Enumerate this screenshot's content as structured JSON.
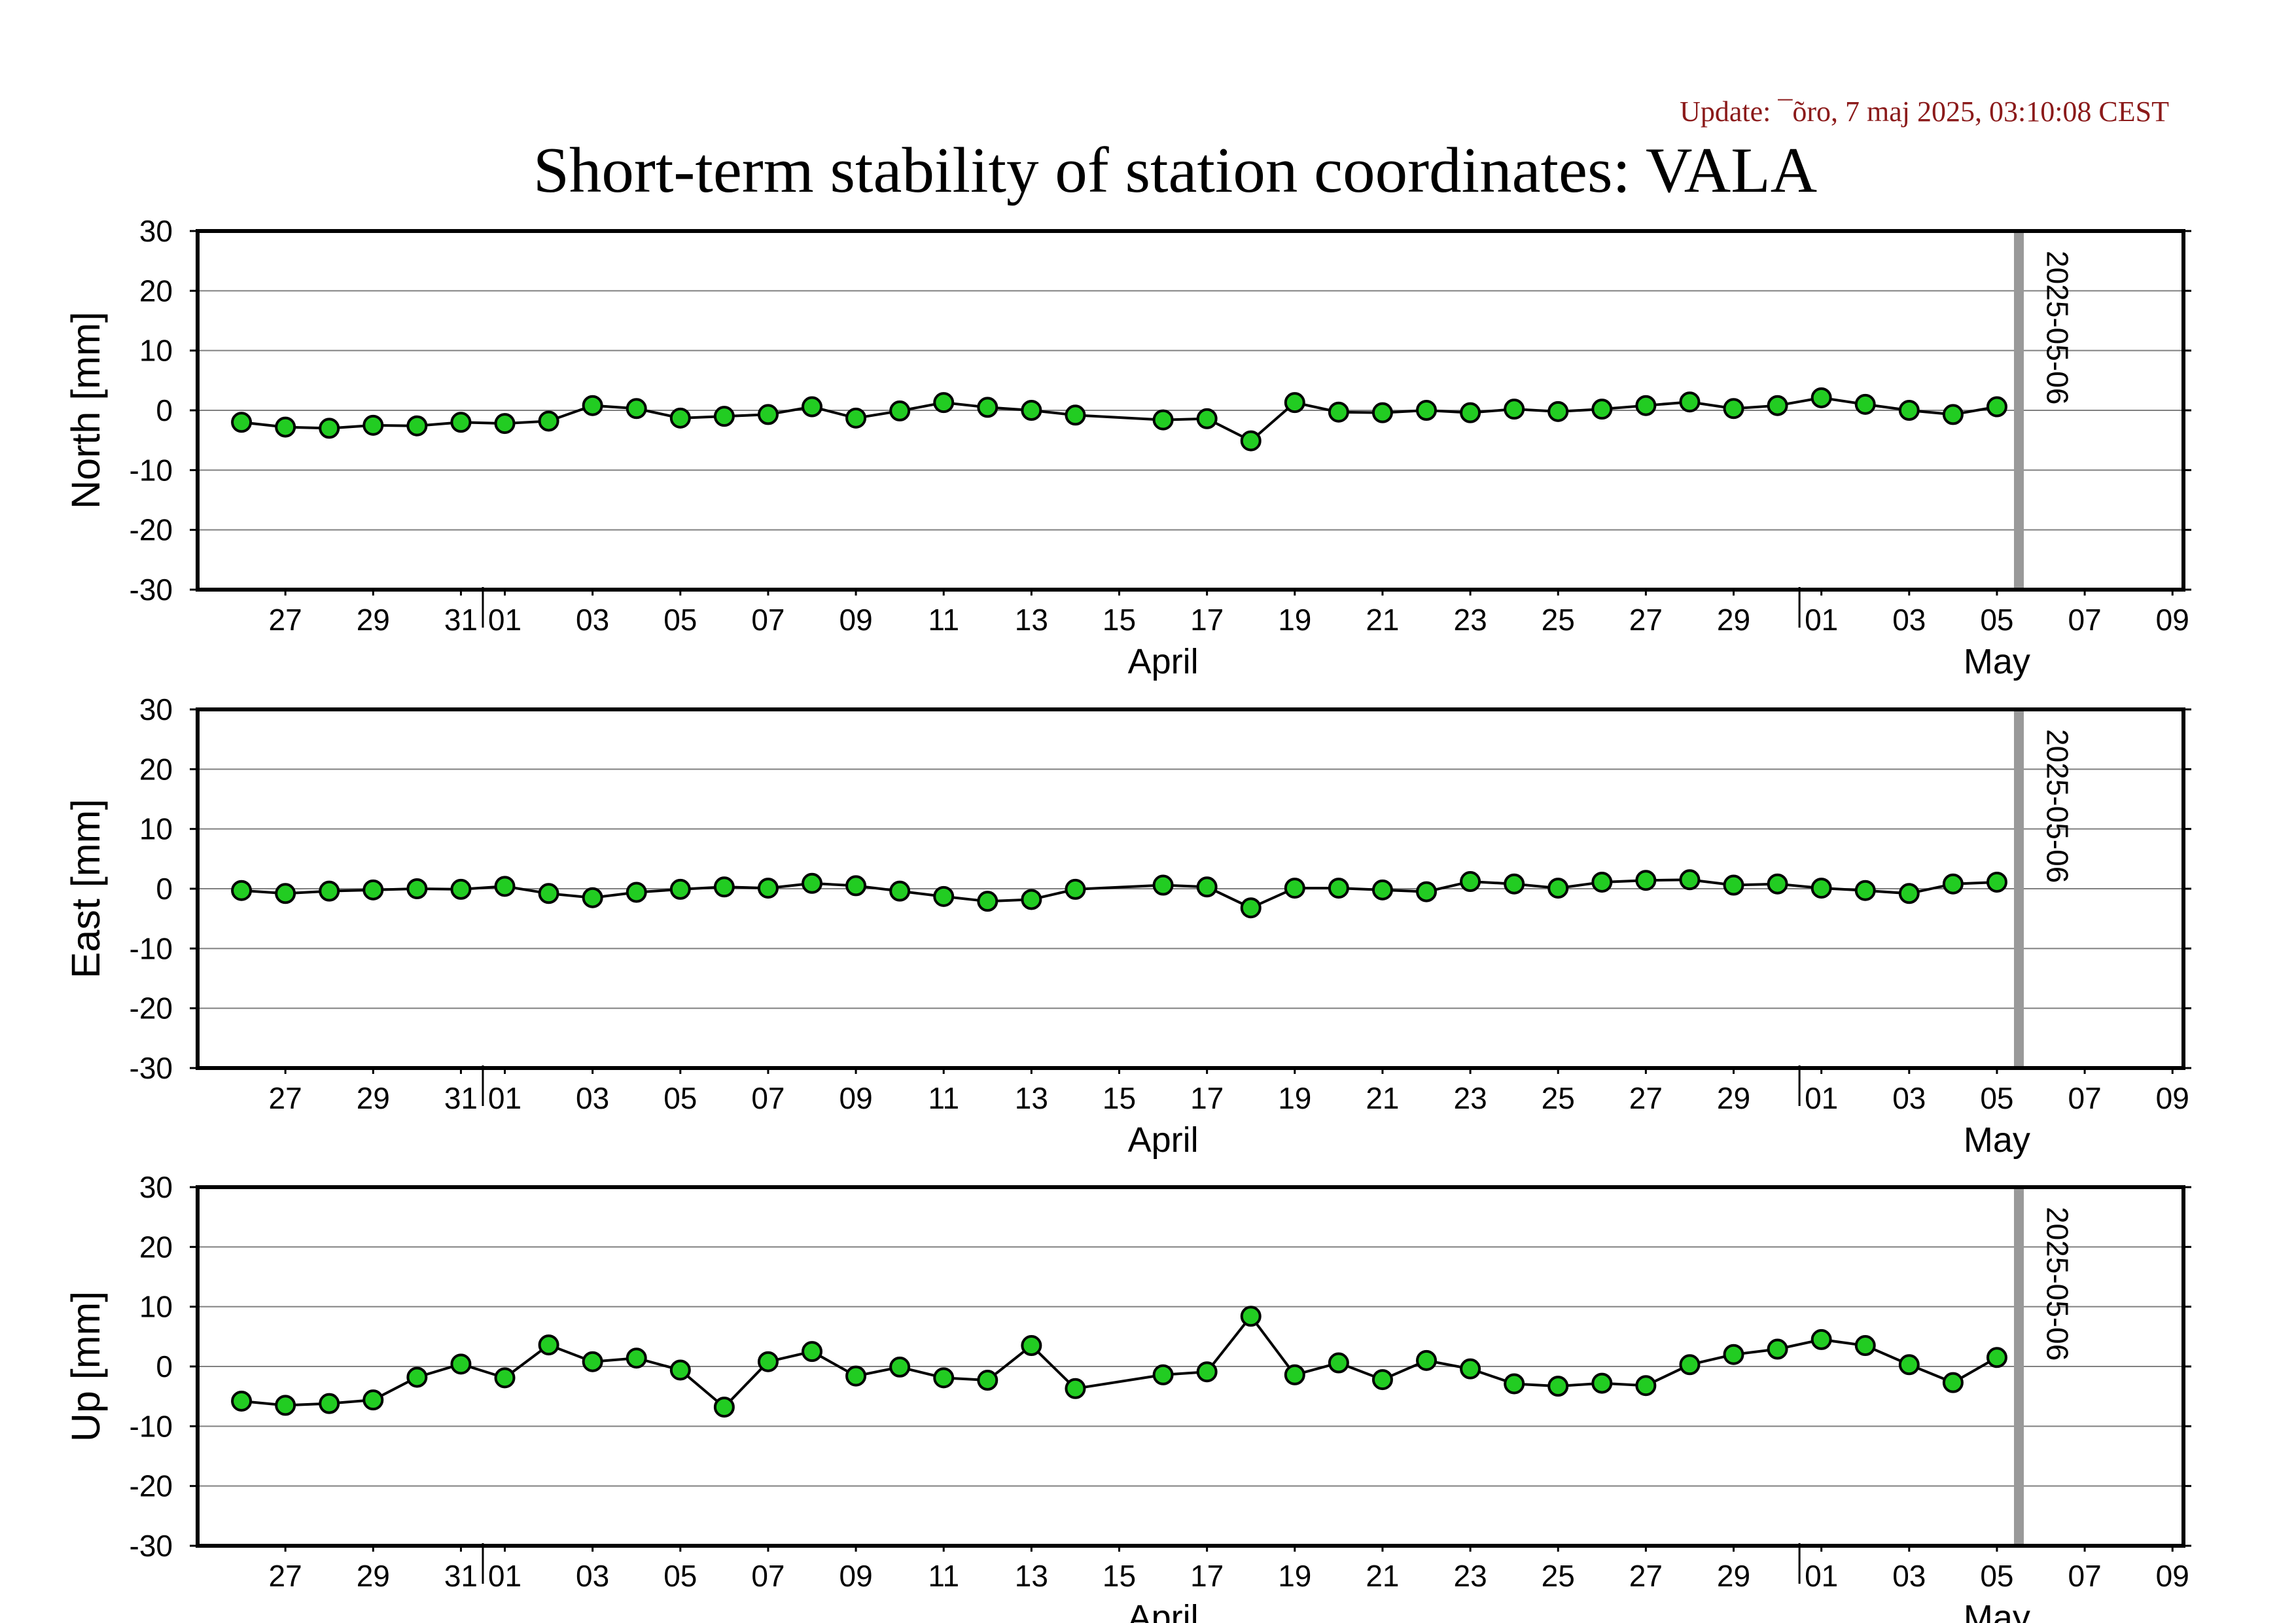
{
  "update_text": "Update: ¯õro, 7 maj 2025, 03:10:08 CEST",
  "title": "Short-term stability of station coordinates: VALA",
  "colors": {
    "marker_fill": "#22cc22",
    "marker_edge": "#000000",
    "line": "#000000",
    "grid": "#808080",
    "marker_line": "#999999",
    "update_text": "#8b1a1a"
  },
  "chart_data": [
    {
      "type": "line",
      "panel": "north",
      "ylabel": "North [mm]",
      "ylim": [
        -30,
        30
      ],
      "yticks": [
        30,
        20,
        10,
        0,
        -10,
        -20,
        -30
      ],
      "xlim": [
        "2025-03-25T12:00",
        "2025-05-09T18:00"
      ],
      "xtick_labels": [
        "27",
        "29",
        "31",
        "01",
        "03",
        "05",
        "07",
        "09",
        "11",
        "13",
        "15",
        "17",
        "19",
        "21",
        "23",
        "25",
        "27",
        "29",
        "01",
        "03",
        "05",
        "07",
        "09"
      ],
      "month_labels": [
        "April",
        "May"
      ],
      "vertical_marker": {
        "date": "2025-05-06",
        "label": "2025-05-06"
      },
      "grid": true,
      "series": [
        {
          "x": [
            "2025-03-26",
            "2025-03-27",
            "2025-03-28",
            "2025-03-29",
            "2025-03-30",
            "2025-03-31",
            "2025-04-01",
            "2025-04-02",
            "2025-04-03",
            "2025-04-04",
            "2025-04-05",
            "2025-04-06",
            "2025-04-07",
            "2025-04-08",
            "2025-04-09",
            "2025-04-10",
            "2025-04-11",
            "2025-04-12",
            "2025-04-13",
            "2025-04-14",
            "2025-04-16",
            "2025-04-17",
            "2025-04-18",
            "2025-04-19",
            "2025-04-20",
            "2025-04-21",
            "2025-04-22",
            "2025-04-23",
            "2025-04-24",
            "2025-04-25",
            "2025-04-26",
            "2025-04-27",
            "2025-04-28",
            "2025-04-29",
            "2025-04-30",
            "2025-05-01",
            "2025-05-02",
            "2025-05-03",
            "2025-05-04",
            "2025-05-05"
          ],
          "y": [
            -2.0,
            -2.8,
            -3.0,
            -2.5,
            -2.6,
            -2.0,
            -2.2,
            -1.8,
            0.8,
            0.3,
            -1.3,
            -1.0,
            -0.7,
            0.6,
            -1.3,
            -0.1,
            1.3,
            0.5,
            0.0,
            -0.8,
            -1.6,
            -1.4,
            -5.1,
            1.3,
            -0.3,
            -0.4,
            0.0,
            -0.4,
            0.2,
            -0.2,
            0.2,
            0.8,
            1.4,
            0.3,
            0.8,
            2.1,
            1.0,
            0.0,
            -0.7,
            0.6
          ]
        }
      ]
    },
    {
      "type": "line",
      "panel": "east",
      "ylabel": "East [mm]",
      "ylim": [
        -30,
        30
      ],
      "yticks": [
        30,
        20,
        10,
        0,
        -10,
        -20,
        -30
      ],
      "xlim": [
        "2025-03-25T12:00",
        "2025-05-09T18:00"
      ],
      "xtick_labels": [
        "27",
        "29",
        "31",
        "01",
        "03",
        "05",
        "07",
        "09",
        "11",
        "13",
        "15",
        "17",
        "19",
        "21",
        "23",
        "25",
        "27",
        "29",
        "01",
        "03",
        "05",
        "07",
        "09"
      ],
      "month_labels": [
        "April",
        "May"
      ],
      "vertical_marker": {
        "date": "2025-05-06",
        "label": "2025-05-06"
      },
      "grid": true,
      "series": [
        {
          "x": [
            "2025-03-26",
            "2025-03-27",
            "2025-03-28",
            "2025-03-29",
            "2025-03-30",
            "2025-03-31",
            "2025-04-01",
            "2025-04-02",
            "2025-04-03",
            "2025-04-04",
            "2025-04-05",
            "2025-04-06",
            "2025-04-07",
            "2025-04-08",
            "2025-04-09",
            "2025-04-10",
            "2025-04-11",
            "2025-04-12",
            "2025-04-13",
            "2025-04-14",
            "2025-04-16",
            "2025-04-17",
            "2025-04-18",
            "2025-04-19",
            "2025-04-20",
            "2025-04-21",
            "2025-04-22",
            "2025-04-23",
            "2025-04-24",
            "2025-04-25",
            "2025-04-26",
            "2025-04-27",
            "2025-04-28",
            "2025-04-29",
            "2025-04-30",
            "2025-05-01",
            "2025-05-02",
            "2025-05-03",
            "2025-05-04",
            "2025-05-05"
          ],
          "y": [
            -0.3,
            -0.8,
            -0.4,
            -0.2,
            0.0,
            -0.1,
            0.4,
            -0.8,
            -1.5,
            -0.6,
            -0.1,
            0.3,
            0.1,
            0.9,
            0.5,
            -0.4,
            -1.3,
            -2.1,
            -1.8,
            -0.1,
            0.6,
            0.3,
            -3.2,
            0.1,
            0.1,
            -0.2,
            -0.5,
            1.2,
            0.8,
            0.1,
            1.1,
            1.4,
            1.5,
            0.6,
            0.8,
            0.1,
            -0.3,
            -0.8,
            0.8,
            1.1
          ]
        }
      ]
    },
    {
      "type": "line",
      "panel": "up",
      "ylabel": "Up [mm]",
      "ylim": [
        -30,
        30
      ],
      "yticks": [
        30,
        20,
        10,
        0,
        -10,
        -20,
        -30
      ],
      "xlim": [
        "2025-03-25T12:00",
        "2025-05-09T18:00"
      ],
      "xtick_labels": [
        "27",
        "29",
        "31",
        "01",
        "03",
        "05",
        "07",
        "09",
        "11",
        "13",
        "15",
        "17",
        "19",
        "21",
        "23",
        "25",
        "27",
        "29",
        "01",
        "03",
        "05",
        "07",
        "09"
      ],
      "month_labels": [
        "April",
        "May"
      ],
      "vertical_marker": {
        "date": "2025-05-06",
        "label": "2025-05-06"
      },
      "grid": true,
      "series": [
        {
          "x": [
            "2025-03-26",
            "2025-03-27",
            "2025-03-28",
            "2025-03-29",
            "2025-03-30",
            "2025-03-31",
            "2025-04-01",
            "2025-04-02",
            "2025-04-03",
            "2025-04-04",
            "2025-04-05",
            "2025-04-06",
            "2025-04-07",
            "2025-04-08",
            "2025-04-09",
            "2025-04-10",
            "2025-04-11",
            "2025-04-12",
            "2025-04-13",
            "2025-04-14",
            "2025-04-16",
            "2025-04-17",
            "2025-04-18",
            "2025-04-19",
            "2025-04-20",
            "2025-04-21",
            "2025-04-22",
            "2025-04-23",
            "2025-04-24",
            "2025-04-25",
            "2025-04-26",
            "2025-04-27",
            "2025-04-28",
            "2025-04-29",
            "2025-04-30",
            "2025-05-01",
            "2025-05-02",
            "2025-05-03",
            "2025-05-04",
            "2025-05-05"
          ],
          "y": [
            -5.8,
            -6.5,
            -6.2,
            -5.6,
            -1.8,
            0.4,
            -1.9,
            3.6,
            0.8,
            1.4,
            -0.6,
            -6.8,
            0.8,
            2.5,
            -1.6,
            -0.1,
            -1.9,
            -2.3,
            3.5,
            -3.7,
            -1.4,
            -0.9,
            8.4,
            -1.4,
            0.6,
            -2.2,
            1.0,
            -0.4,
            -2.9,
            -3.3,
            -2.8,
            -3.2,
            0.3,
            2.0,
            2.9,
            4.5,
            3.5,
            0.3,
            -2.7,
            1.5
          ]
        }
      ]
    }
  ]
}
